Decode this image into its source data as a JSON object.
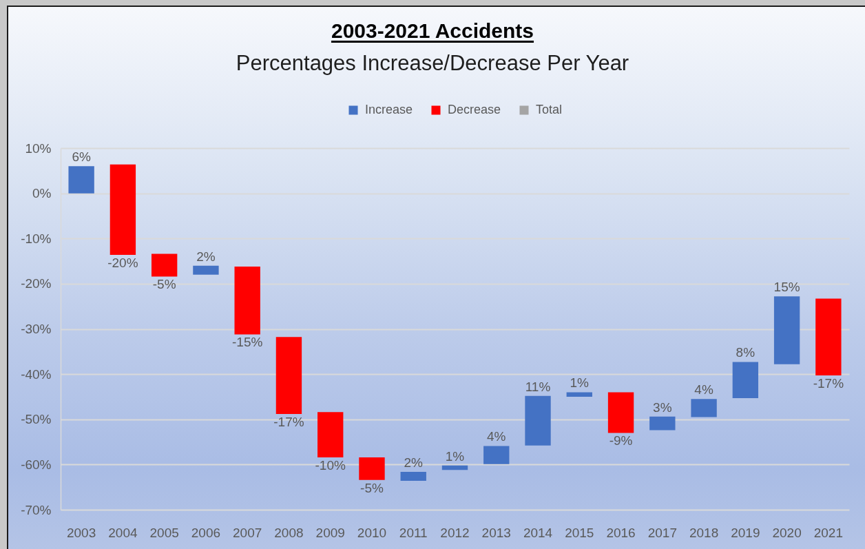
{
  "chart_data": {
    "type": "bar",
    "title": "2003-2021 Accidents",
    "subtitle": "Percentages Increase/Decrease Per Year",
    "categories": [
      "2003",
      "2004",
      "2005",
      "2006",
      "2007",
      "2008",
      "2009",
      "2010",
      "2011",
      "2012",
      "2013",
      "2014",
      "2015",
      "2016",
      "2017",
      "2018",
      "2019",
      "2020",
      "2021"
    ],
    "series": [
      {
        "name": "Increase",
        "color": "#4472c4",
        "values": [
          6,
          null,
          null,
          2,
          null,
          null,
          null,
          null,
          2,
          1,
          4,
          11,
          1,
          null,
          3,
          4,
          8,
          15,
          null
        ],
        "base": [
          0,
          null,
          null,
          -18.0,
          null,
          null,
          null,
          null,
          -63.6,
          -61.2,
          -59.9,
          -55.8,
          -45.0,
          null,
          -52.4,
          -49.5,
          -45.3,
          -37.8,
          null
        ],
        "value_labels": [
          "6%",
          null,
          null,
          "2%",
          null,
          null,
          null,
          null,
          "2%",
          "1%",
          "4%",
          "11%",
          "1%",
          null,
          "3%",
          "4%",
          "8%",
          "15%",
          null
        ]
      },
      {
        "name": "Decrease",
        "color": "#ff0000",
        "values": [
          null,
          -20,
          -5,
          null,
          -15,
          -17,
          -10,
          -5,
          null,
          null,
          null,
          null,
          null,
          -9,
          null,
          null,
          null,
          null,
          -17
        ],
        "base": [
          null,
          6.4,
          -13.4,
          null,
          -16.2,
          -31.8,
          -48.4,
          -58.4,
          null,
          null,
          null,
          null,
          null,
          -44.0,
          null,
          null,
          null,
          null,
          -23.3
        ],
        "value_labels": [
          null,
          "-20%",
          "-5%",
          null,
          "-15%",
          "-17%",
          "-10%",
          "-5%",
          null,
          null,
          null,
          null,
          null,
          "-9%",
          null,
          null,
          null,
          null,
          "-17%"
        ]
      },
      {
        "name": "Total",
        "color": "#a5a5a5",
        "values": [
          null,
          null,
          null,
          null,
          null,
          null,
          null,
          null,
          null,
          null,
          null,
          null,
          null,
          null,
          null,
          null,
          null,
          null,
          null
        ]
      }
    ],
    "ylim": [
      -70,
      10
    ],
    "yticks": [
      {
        "value": 10,
        "label": "10%"
      },
      {
        "value": 0,
        "label": "0%"
      },
      {
        "value": -10,
        "label": "-10%"
      },
      {
        "value": -20,
        "label": "-20%"
      },
      {
        "value": -30,
        "label": "-30%"
      },
      {
        "value": -40,
        "label": "-40%"
      },
      {
        "value": -50,
        "label": "-50%"
      },
      {
        "value": -60,
        "label": "-60%"
      },
      {
        "value": -70,
        "label": "-70%"
      }
    ],
    "grid": "y",
    "legend": "top"
  }
}
